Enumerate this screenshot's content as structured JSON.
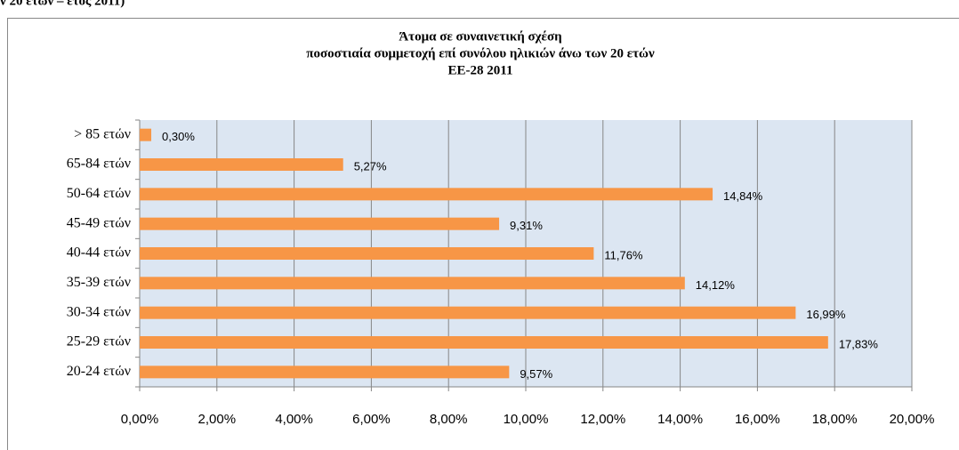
{
  "caption": "ν 20 ετών – έτος 2011)",
  "chart_data": {
    "type": "hbar",
    "title": [
      "Άτομα σε συναινετική σχέση",
      "ποσοστιαία συμμετοχή επί συνόλου ηλικιών άνω των 20 ετών",
      "ΕΕ-28  2011"
    ],
    "categories": [
      "20-24 ετών",
      "25-29 ετών",
      "30-34 ετών",
      "35-39 ετών",
      "40-44 ετών",
      "45-49 ετών",
      "50-64 ετών",
      "65-84 ετών",
      "> 85 ετών"
    ],
    "values": [
      9.57,
      17.83,
      16.99,
      14.12,
      11.76,
      9.31,
      14.84,
      5.27,
      0.3
    ],
    "value_labels": [
      "9,57%",
      "17,83%",
      "16,99%",
      "14,12%",
      "11,76%",
      "9,31%",
      "14,84%",
      "5,27%",
      "0,30%"
    ],
    "color": "#f79646",
    "xlim": [
      0,
      20
    ],
    "xticks": [
      {
        "value": 0,
        "label": "0,00%"
      },
      {
        "value": 2,
        "label": "2,00%"
      },
      {
        "value": 4,
        "label": "4,00%"
      },
      {
        "value": 6,
        "label": "6,00%"
      },
      {
        "value": 8,
        "label": "8,00%"
      },
      {
        "value": 10,
        "label": "10,00%"
      },
      {
        "value": 12,
        "label": "12,00%"
      },
      {
        "value": 14,
        "label": "14,00%"
      },
      {
        "value": 16,
        "label": "16,00%"
      },
      {
        "value": 18,
        "label": "18,00%"
      },
      {
        "value": 20,
        "label": "20,00%"
      }
    ],
    "grid": true
  }
}
